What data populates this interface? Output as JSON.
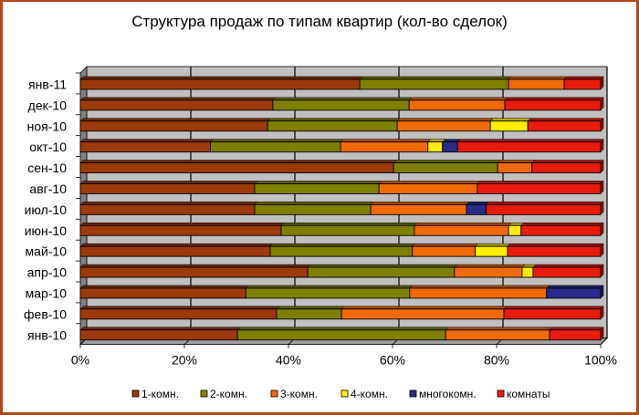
{
  "chart_data": {
    "type": "bar",
    "orientation": "horizontal",
    "stacked": "percent",
    "title": "Структура продаж по типам квартир (кол-во сделок)",
    "xlabel": "",
    "ylabel": "",
    "xlim": [
      0,
      100
    ],
    "x_ticks": [
      "0%",
      "20%",
      "40%",
      "60%",
      "80%",
      "100%"
    ],
    "grid": true,
    "legend_position": "bottom",
    "categories": [
      "янв-11",
      "дек-10",
      "ноя-10",
      "окт-10",
      "сен-10",
      "авг-10",
      "июл-10",
      "июн-10",
      "май-10",
      "апр-10",
      "мар-10",
      "фев-10",
      "янв-10"
    ],
    "series": [
      {
        "name": "1-комн.",
        "color": "#9c3a0a",
        "values": [
          53.7,
          37.0,
          36.0,
          25.0,
          60.2,
          33.5,
          33.5,
          38.6,
          36.5,
          43.7,
          31.8,
          37.7,
          30.2
        ]
      },
      {
        "name": "2-комн.",
        "color": "#808000",
        "values": [
          28.6,
          26.2,
          24.9,
          25.0,
          20.0,
          23.9,
          22.3,
          25.6,
          27.3,
          28.2,
          31.5,
          12.5,
          40.0
        ]
      },
      {
        "name": "3-комн.",
        "color": "#f06a08",
        "values": [
          10.7,
          18.4,
          17.9,
          16.8,
          6.6,
          18.9,
          18.4,
          18.1,
          12.1,
          13.0,
          26.3,
          31.2,
          20.0
        ]
      },
      {
        "name": "4-комн.",
        "color": "#ffee00",
        "values": [
          0,
          0,
          7.2,
          2.8,
          0,
          0,
          0,
          2.4,
          6.2,
          2.1,
          0,
          0,
          0
        ]
      },
      {
        "name": "многокомн.",
        "color": "#2a2a8a",
        "values": [
          0,
          0,
          0,
          2.9,
          0,
          0,
          3.8,
          0,
          0,
          0,
          10.4,
          0,
          0
        ]
      },
      {
        "name": "комнаты",
        "color": "#e81c0c",
        "values": [
          7.0,
          18.4,
          14.0,
          27.5,
          13.2,
          23.7,
          22.0,
          15.3,
          17.9,
          13.0,
          0,
          18.6,
          9.8
        ]
      }
    ]
  }
}
